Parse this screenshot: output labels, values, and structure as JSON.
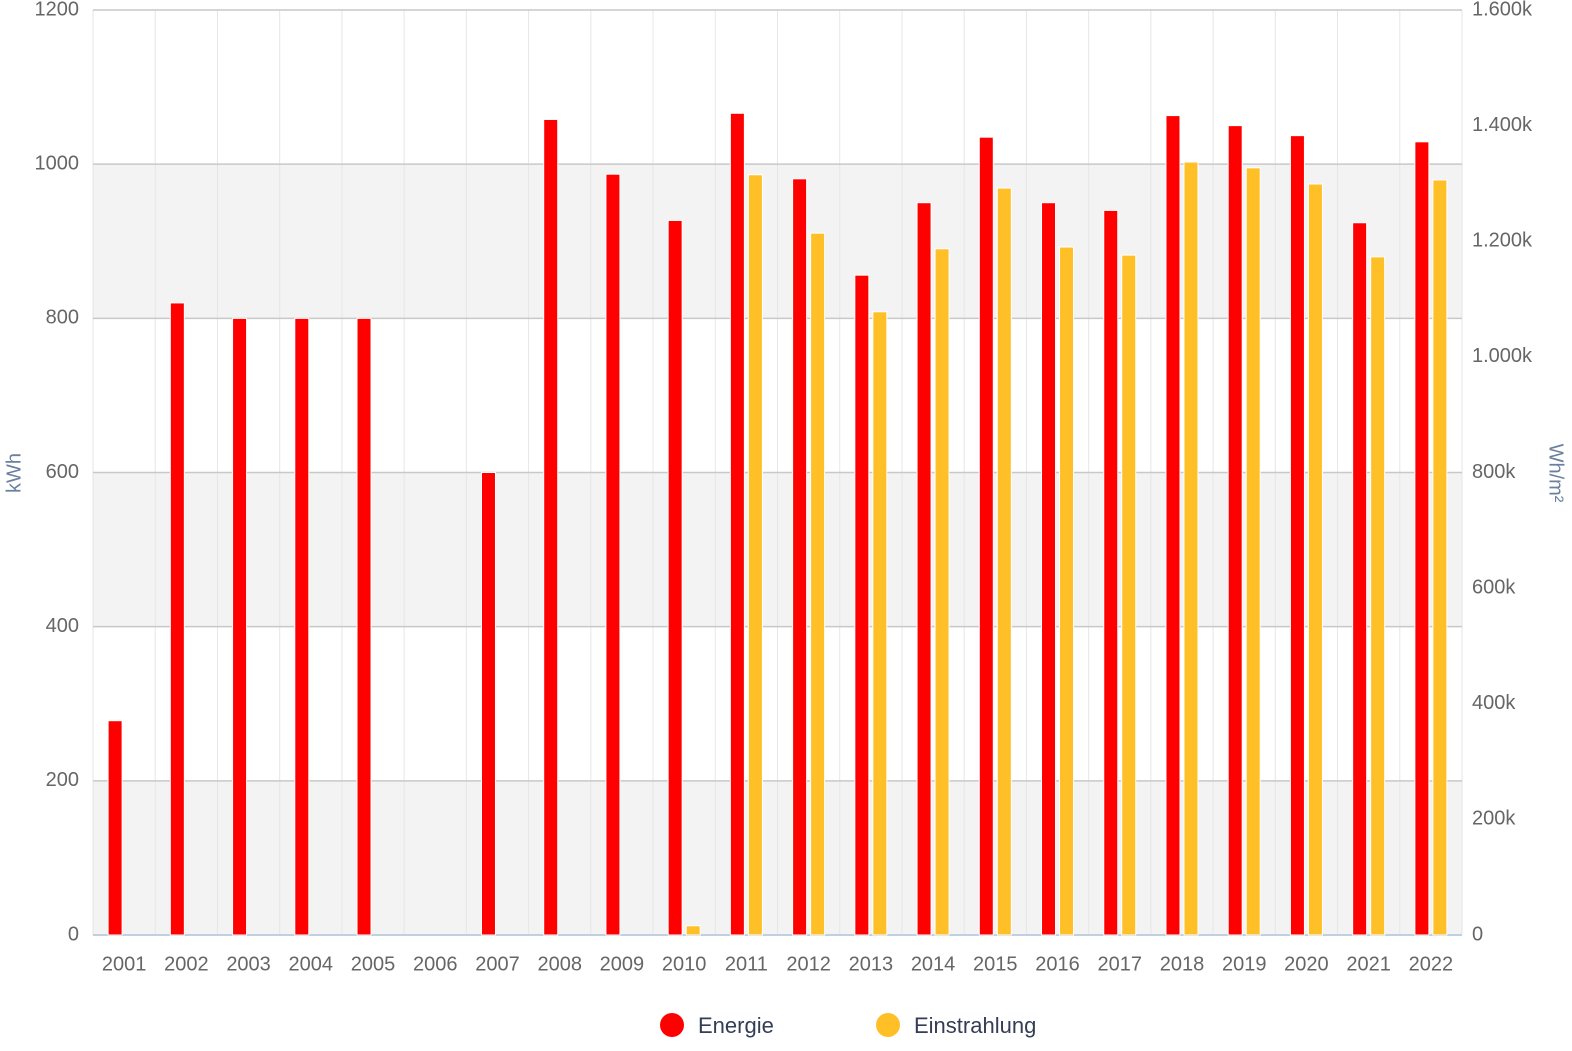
{
  "chart_data": {
    "type": "bar",
    "categories": [
      "2001",
      "2002",
      "2003",
      "2004",
      "2005",
      "2006",
      "2007",
      "2008",
      "2009",
      "2010",
      "2011",
      "2012",
      "2013",
      "2014",
      "2015",
      "2016",
      "2017",
      "2018",
      "2019",
      "2020",
      "2021",
      "2022"
    ],
    "series": [
      {
        "name": "Energie",
        "color": "#ff0000",
        "values": [
          278,
          820,
          800,
          800,
          800,
          null,
          600,
          1058,
          987,
          927,
          1066,
          981,
          856,
          950,
          1035,
          950,
          940,
          1063,
          1050,
          1037,
          924,
          1029
        ]
      },
      {
        "name": "Einstrahlung",
        "color": "#ffbf27",
        "axis": "y2",
        "values": [
          null,
          null,
          null,
          null,
          null,
          null,
          null,
          null,
          null,
          16000,
          1315000,
          1214000,
          1078000,
          1187000,
          1292000,
          1190000,
          1176000,
          1337000,
          1327000,
          1299000,
          1173000,
          1306000
        ]
      }
    ],
    "ylabel": "kWh",
    "y2label": "Wh/m²",
    "ylim": [
      0,
      1200
    ],
    "yticks": [
      0,
      200,
      400,
      600,
      800,
      1000,
      1200
    ],
    "y2lim": [
      0,
      1600000
    ],
    "y2ticks": [
      0,
      {
        "value": 200000,
        "label": "200k"
      },
      {
        "value": 400000,
        "label": "400k"
      },
      {
        "value": 600000,
        "label": "600k"
      },
      {
        "value": 800000,
        "label": "800k"
      },
      {
        "value": 1000000,
        "label": "1.000k"
      },
      {
        "value": 1200000,
        "label": "1.200k"
      },
      {
        "value": 1400000,
        "label": "1.400k"
      },
      {
        "value": 1600000,
        "label": "1.600k"
      }
    ],
    "grid": true,
    "legend": "bottom"
  }
}
